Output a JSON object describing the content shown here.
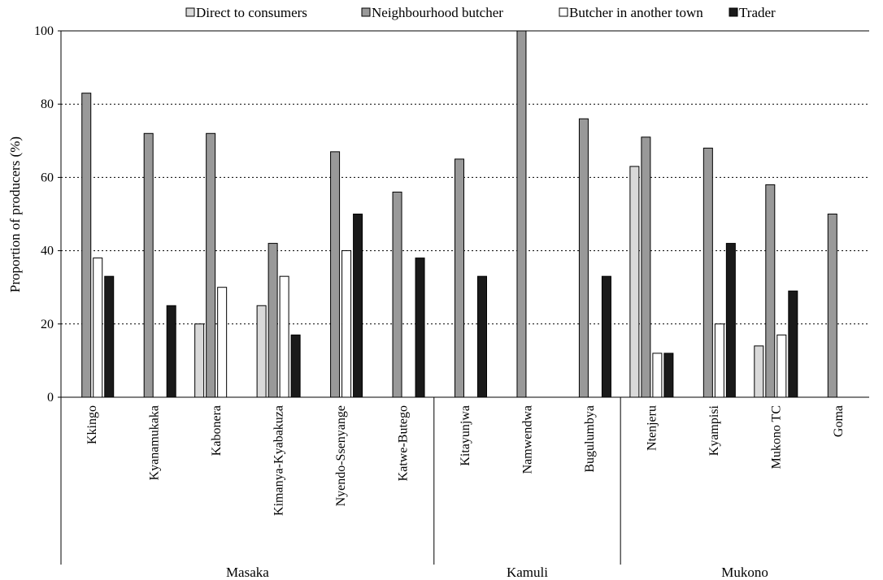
{
  "chart_data": {
    "type": "bar",
    "title": "",
    "xlabel": "",
    "ylabel": "Proportion of producers (%)",
    "ylim": [
      0,
      100
    ],
    "yticks": [
      0,
      20,
      40,
      60,
      80,
      100
    ],
    "grid": "horizontal dotted at 20, 40, 60, 80",
    "legend_position": "top",
    "categories": [
      "Kkingo",
      "Kyanamukaka",
      "Kabonera",
      "Kimanya-Kyabakuza",
      "Nyendo-Ssenyange",
      "Katwe-Butego",
      "Kitayunjwa",
      "Namwendwa",
      "Bugulumbya",
      "Ntenjeru",
      "Kyampisi",
      "Mukono TC",
      "Goma"
    ],
    "groups": [
      {
        "name": "Masaka",
        "categories": [
          "Kkingo",
          "Kyanamukaka",
          "Kabonera",
          "Kimanya-Kyabakuza",
          "Nyendo-Ssenyange",
          "Katwe-Butego"
        ]
      },
      {
        "name": "Kamuli",
        "categories": [
          "Kitayunjwa",
          "Namwendwa",
          "Bugulumbya"
        ]
      },
      {
        "name": "Mukono",
        "categories": [
          "Ntenjeru",
          "Kyampisi",
          "Mukono TC",
          "Goma"
        ]
      }
    ],
    "series": [
      {
        "name": "Direct to consumers",
        "color": "#d9d9d9",
        "values": [
          0,
          0,
          20,
          25,
          0,
          0,
          0,
          0,
          0,
          63,
          0,
          14,
          0
        ]
      },
      {
        "name": "Neighbourhood butcher",
        "color": "#999999",
        "values": [
          83,
          72,
          72,
          42,
          67,
          56,
          65,
          100,
          76,
          71,
          68,
          58,
          50
        ]
      },
      {
        "name": "Butcher in another town",
        "color": "#ffffff",
        "values": [
          38,
          0,
          30,
          33,
          40,
          0,
          0,
          0,
          0,
          12,
          20,
          17,
          0
        ]
      },
      {
        "name": "Trader",
        "color": "#1a1a1a",
        "values": [
          33,
          25,
          0,
          17,
          50,
          38,
          33,
          0,
          33,
          12,
          42,
          29,
          0
        ]
      }
    ]
  }
}
